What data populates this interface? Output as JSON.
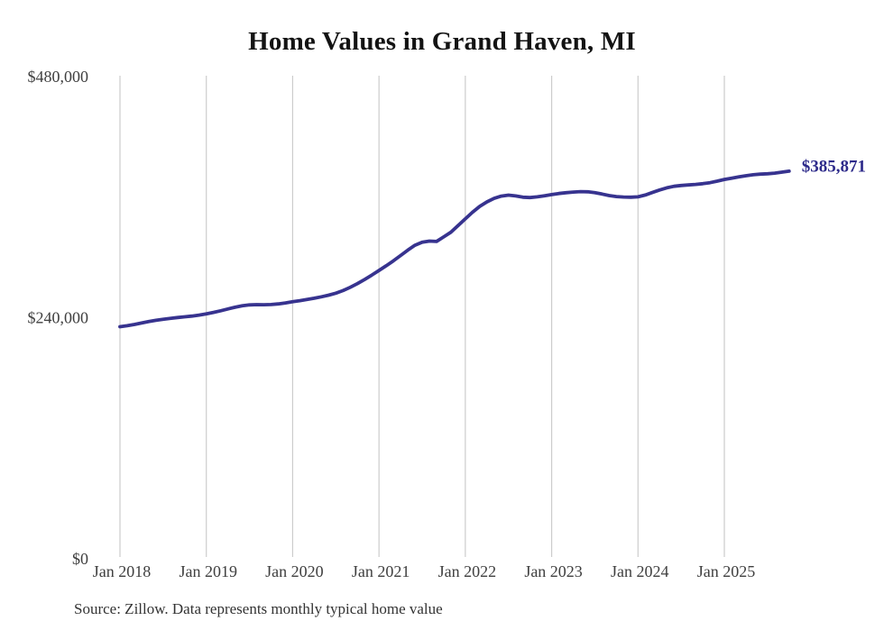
{
  "title": "Home Values in Grand Haven, MI",
  "source_note": "Source: Zillow. Data represents monthly typical home value",
  "chart_data": {
    "type": "line",
    "title": "Home Values in Grand Haven, MI",
    "xlabel": "",
    "ylabel": "",
    "ylim": [
      0,
      480000
    ],
    "grid": "vertical-only",
    "legend": "none",
    "end_label": "$385,871",
    "end_value": 385871,
    "colors": {
      "line": "#37338f",
      "end_label": "#2d2a8a",
      "gridline": "#cccccc",
      "tick": "#3f3f3f"
    },
    "y_ticks": [
      {
        "label": "$0",
        "value": 0
      },
      {
        "label": "$240,000",
        "value": 240000
      },
      {
        "label": "$480,000",
        "value": 480000
      }
    ],
    "x_ticks": [
      {
        "label": "Jan 2018",
        "month_index": 0
      },
      {
        "label": "Jan 2019",
        "month_index": 12
      },
      {
        "label": "Jan 2020",
        "month_index": 24
      },
      {
        "label": "Jan 2021",
        "month_index": 36
      },
      {
        "label": "Jan 2022",
        "month_index": 48
      },
      {
        "label": "Jan 2023",
        "month_index": 60
      },
      {
        "label": "Jan 2024",
        "month_index": 72
      },
      {
        "label": "Jan 2025",
        "month_index": 84
      }
    ],
    "x": [
      "2018-01",
      "2018-02",
      "2018-03",
      "2018-04",
      "2018-05",
      "2018-06",
      "2018-07",
      "2018-08",
      "2018-09",
      "2018-10",
      "2018-11",
      "2018-12",
      "2019-01",
      "2019-02",
      "2019-03",
      "2019-04",
      "2019-05",
      "2019-06",
      "2019-07",
      "2019-08",
      "2019-09",
      "2019-10",
      "2019-11",
      "2019-12",
      "2020-01",
      "2020-02",
      "2020-03",
      "2020-04",
      "2020-05",
      "2020-06",
      "2020-07",
      "2020-08",
      "2020-09",
      "2020-10",
      "2020-11",
      "2020-12",
      "2021-01",
      "2021-02",
      "2021-03",
      "2021-04",
      "2021-05",
      "2021-06",
      "2021-07",
      "2021-08",
      "2021-09",
      "2021-10",
      "2021-11",
      "2021-12",
      "2022-01",
      "2022-02",
      "2022-03",
      "2022-04",
      "2022-05",
      "2022-06",
      "2022-07",
      "2022-08",
      "2022-09",
      "2022-10",
      "2022-11",
      "2022-12",
      "2023-01",
      "2023-02",
      "2023-03",
      "2023-04",
      "2023-05",
      "2023-06",
      "2023-07",
      "2023-08",
      "2023-09",
      "2023-10",
      "2023-11",
      "2023-12",
      "2024-01",
      "2024-02",
      "2024-03",
      "2024-04",
      "2024-05",
      "2024-06",
      "2024-07",
      "2024-08",
      "2024-09",
      "2024-10",
      "2024-11",
      "2024-12",
      "2025-01",
      "2025-02",
      "2025-03",
      "2025-04",
      "2025-05",
      "2025-06",
      "2025-07",
      "2025-08",
      "2025-09",
      "2025-10"
    ],
    "series": [
      {
        "name": "Monthly typical home value",
        "values": [
          231000,
          232000,
          233300,
          234700,
          236100,
          237400,
          238500,
          239400,
          240200,
          240900,
          241600,
          242600,
          243900,
          245300,
          246900,
          248700,
          250400,
          251800,
          252700,
          253000,
          252900,
          253100,
          253700,
          254700,
          255900,
          257000,
          258200,
          259400,
          260800,
          262400,
          264400,
          267000,
          270200,
          273900,
          278000,
          282400,
          287000,
          291700,
          296600,
          301900,
          307200,
          312100,
          315200,
          316300,
          315900,
          320500,
          325100,
          331800,
          338500,
          345000,
          350800,
          355300,
          358800,
          361000,
          362000,
          361200,
          360000,
          359600,
          360300,
          361400,
          362600,
          363600,
          364400,
          365100,
          365500,
          365300,
          364400,
          363100,
          361600,
          360600,
          360100,
          360000,
          360300,
          362100,
          364600,
          367100,
          369300,
          370800,
          371600,
          372200,
          372700,
          373400,
          374400,
          375900,
          377600,
          378900,
          380100,
          381300,
          382300,
          382900,
          383300,
          383900,
          384900,
          385871
        ]
      }
    ]
  }
}
